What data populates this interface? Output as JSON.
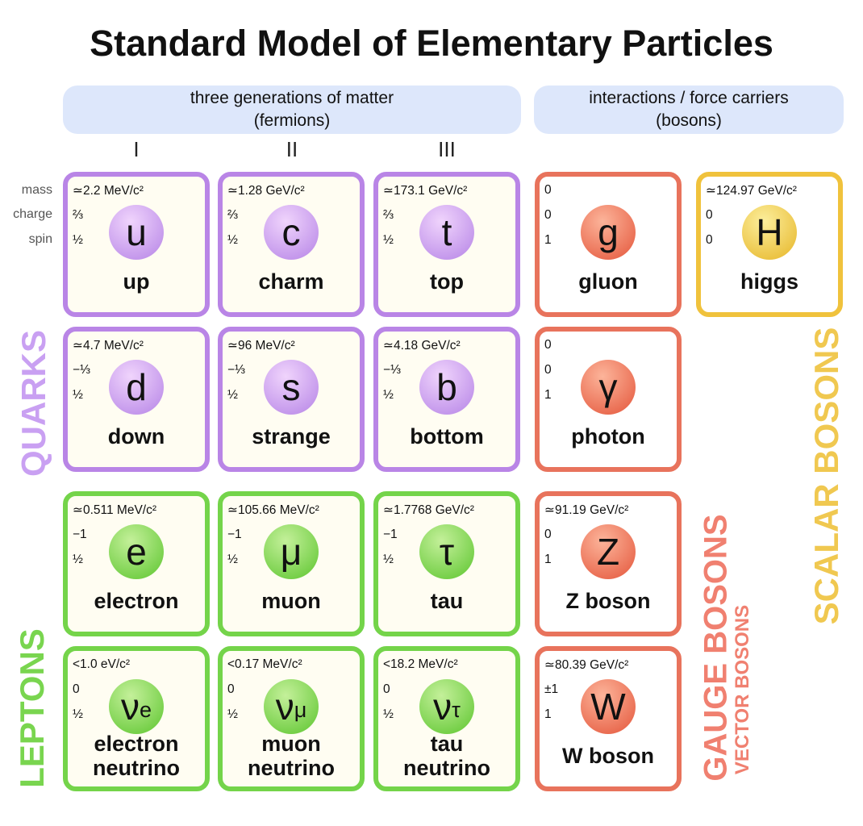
{
  "title": "Standard Model of Elementary Particles",
  "headers": [
    {
      "line1": "three generations of matter",
      "line2": "(fermions)"
    },
    {
      "line1": "interactions / force carriers",
      "line2": "(bosons)"
    }
  ],
  "generations": [
    "I",
    "II",
    "III"
  ],
  "property_labels": [
    "mass",
    "charge",
    "spin"
  ],
  "quarks": {
    "label": "QUARKS",
    "particles": [
      {
        "symbol": "u",
        "name": "up",
        "mass": "≃2.2 MeV/c²",
        "charge": "⅔",
        "spin": "½"
      },
      {
        "symbol": "c",
        "name": "charm",
        "mass": "≃1.28 GeV/c²",
        "charge": "⅔",
        "spin": "½"
      },
      {
        "symbol": "t",
        "name": "top",
        "mass": "≃173.1 GeV/c²",
        "charge": "⅔",
        "spin": "½"
      },
      {
        "symbol": "d",
        "name": "down",
        "mass": "≃4.7 MeV/c²",
        "charge": "−⅓",
        "spin": "½"
      },
      {
        "symbol": "s",
        "name": "strange",
        "mass": "≃96 MeV/c²",
        "charge": "−⅓",
        "spin": "½"
      },
      {
        "symbol": "b",
        "name": "bottom",
        "mass": "≃4.18 GeV/c²",
        "charge": "−⅓",
        "spin": "½"
      }
    ]
  },
  "leptons": {
    "label": "LEPTONS",
    "particles": [
      {
        "symbol": "e",
        "name": "electron",
        "mass": "≃0.511 MeV/c²",
        "charge": "−1",
        "spin": "½"
      },
      {
        "symbol": "μ",
        "name": "muon",
        "mass": "≃105.66 MeV/c²",
        "charge": "−1",
        "spin": "½"
      },
      {
        "symbol": "τ",
        "name": "tau",
        "mass": "≃1.7768 GeV/c²",
        "charge": "−1",
        "spin": "½"
      },
      {
        "symbol": "ν",
        "subscript": "e",
        "name": "electron neutrino",
        "mass": "<1.0 eV/c²",
        "charge": "0",
        "spin": "½"
      },
      {
        "symbol": "ν",
        "subscript": "μ",
        "name": "muon neutrino",
        "mass": "<0.17 MeV/c²",
        "charge": "0",
        "spin": "½"
      },
      {
        "symbol": "ν",
        "subscript": "τ",
        "name": "tau neutrino",
        "mass": "<18.2 MeV/c²",
        "charge": "0",
        "spin": "½"
      }
    ]
  },
  "gauge_bosons": {
    "label": "GAUGE BOSONS",
    "sublabel": "VECTOR BOSONS",
    "particles": [
      {
        "symbol": "g",
        "name": "gluon",
        "mass": "0",
        "charge": "0",
        "spin": "1"
      },
      {
        "symbol": "γ",
        "name": "photon",
        "mass": "0",
        "charge": "0",
        "spin": "1"
      },
      {
        "symbol": "Z",
        "name": "Z boson",
        "mass": "≃91.19 GeV/c²",
        "charge": "0",
        "spin": "1"
      },
      {
        "symbol": "W",
        "name": "W boson",
        "mass": "≃80.39 GeV/c²",
        "charge": "±1",
        "spin": "1"
      }
    ]
  },
  "scalar_bosons": {
    "label": "SCALAR BOSONS",
    "particles": [
      {
        "symbol": "H",
        "name": "higgs",
        "mass": "≃124.97 GeV/c²",
        "charge": "0",
        "spin": "0"
      }
    ]
  }
}
